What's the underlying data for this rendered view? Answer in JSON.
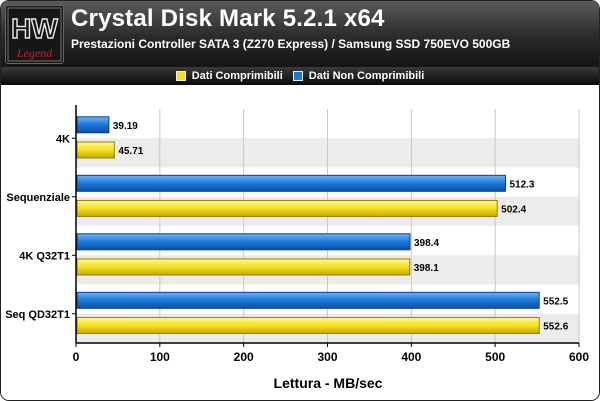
{
  "header": {
    "title": "Crystal Disk Mark 5.2.1 x64",
    "subtitle": "Prestazioni Controller SATA 3 (Z270 Express) / Samsung SSD 750EVO 500GB",
    "logo_top": "HW",
    "logo_bottom": "Legend"
  },
  "colors": {
    "header_bg": "#2a2a2a",
    "blue": "#1e78d8",
    "yellow": "#f4e020",
    "band": "#ececec",
    "logo_accent": "#c8202a"
  },
  "chart_data": {
    "type": "bar",
    "orientation": "horizontal",
    "categories": [
      "4K",
      "Sequenziale",
      "4K Q32T1",
      "Seq QD32T1"
    ],
    "series": [
      {
        "name": "Dati Non Comprimibili",
        "color": "#1e78d8",
        "values": [
          39.19,
          512.3,
          398.4,
          552.5
        ]
      },
      {
        "name": "Dati Comprimibili",
        "color": "#f4e020",
        "values": [
          45.71,
          502.4,
          398.1,
          552.6
        ]
      }
    ],
    "value_labels": [
      [
        "39.19",
        "512.3",
        "398.4",
        "552.5"
      ],
      [
        "45.71",
        "502.4",
        "398.1",
        "552.6"
      ]
    ],
    "legend_order": [
      "Dati Comprimibili",
      "Dati Non Comprimibili"
    ],
    "xlabel": "Lettura - MB/sec",
    "xlim": [
      0,
      600
    ],
    "xticks": [
      "0",
      "100",
      "200",
      "300",
      "400",
      "500",
      "600"
    ],
    "legend_position": "top-center",
    "grid": true
  }
}
